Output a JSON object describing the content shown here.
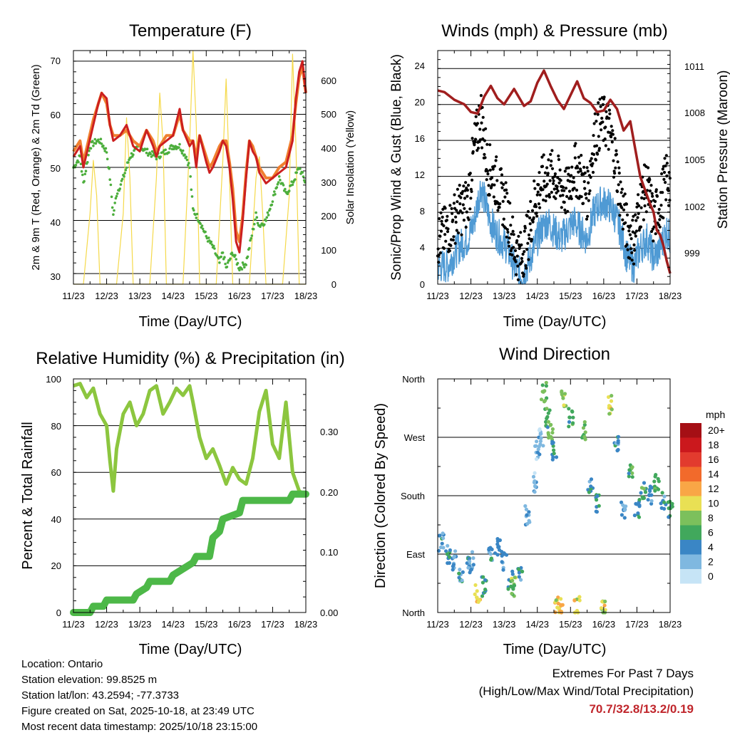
{
  "time_ticks": [
    "11/23",
    "12/23",
    "13/23",
    "14/23",
    "15/23",
    "16/23",
    "17/23",
    "18/23"
  ],
  "panels": {
    "temperature": {
      "title": "Temperature (F)",
      "xlabel": "Time (Day/UTC)",
      "ylabel_left": "2m & 9m T (Red, Orange) & 2m Td (Green)",
      "ylabel_right": "Solar Insolation (Yellow)",
      "left_ticks": [
        "70",
        "60",
        "50",
        "40",
        "30"
      ],
      "right_ticks": [
        "600",
        "500",
        "400",
        "300",
        "200",
        "100",
        "0"
      ]
    },
    "winds": {
      "title": "Winds (mph) & Pressure (mb)",
      "xlabel": "Time (Day/UTC)",
      "ylabel_left": "Sonic/Prop Wind & Gust (Blue, Black)",
      "ylabel_right": "Station Pressure (Maroon)",
      "left_ticks": [
        "24",
        "20",
        "16",
        "12",
        "8",
        "4",
        "0"
      ],
      "right_ticks": [
        "1011",
        "1008",
        "1005",
        "1002",
        "999"
      ]
    },
    "humidity": {
      "title": "Relative Humidity (%) & Precipitation (in)",
      "xlabel": "Time (Day/UTC)",
      "ylabel_left": "Percent & Total Rainfall",
      "left_ticks": [
        "100",
        "80",
        "60",
        "40",
        "20",
        "0"
      ],
      "right_ticks": [
        "0.30",
        "0.20",
        "0.10",
        "0.00"
      ]
    },
    "direction": {
      "title": "Wind Direction",
      "xlabel": "Time (Day/UTC)",
      "ylabel_left": "Direction (Colored By Speed)",
      "left_ticks": [
        "North",
        "West",
        "South",
        "East",
        "North"
      ],
      "legend_title": "mph",
      "legend_labels": [
        "20+",
        "18",
        "16",
        "14",
        "12",
        "10",
        "8",
        "6",
        "4",
        "2",
        "0"
      ],
      "legend_colors": [
        "#a50f15",
        "#cb181d",
        "#e23b2e",
        "#f26a2b",
        "#f9a646",
        "#e9e054",
        "#7cc05c",
        "#41a85c",
        "#3a86c5",
        "#7fb8e0",
        "#c6e4f6"
      ]
    }
  },
  "chart_data": [
    {
      "type": "line",
      "title": "Temperature (F)",
      "xlabel": "Time (Day/UTC)",
      "ylabel": "2m & 9m T (Red, Orange) & 2m Td (Green)",
      "y2label": "Solar Insolation (Yellow)",
      "xlim": [
        0,
        7
      ],
      "ylim": [
        28,
        72
      ],
      "y2lim": [
        0,
        660
      ],
      "series": [
        {
          "name": "2m T",
          "color": "#cc1f1f",
          "axis": "left",
          "x": [
            0,
            0.2,
            0.3,
            0.45,
            0.6,
            0.75,
            0.85,
            1.0,
            1.1,
            1.2,
            1.4,
            1.6,
            1.8,
            2.0,
            2.2,
            2.4,
            2.5,
            2.6,
            2.8,
            3.0,
            3.2,
            3.3,
            3.5,
            3.6,
            3.7,
            3.8,
            4.0,
            4.1,
            4.2,
            4.4,
            4.5,
            4.6,
            4.7,
            4.8,
            4.9,
            5.0,
            5.1,
            5.2,
            5.3,
            5.4,
            5.5,
            5.6,
            5.8,
            6.0,
            6.2,
            6.4,
            6.6,
            6.7,
            6.8,
            6.9,
            7.0
          ],
          "y": [
            52,
            54,
            50,
            54,
            58,
            62,
            64,
            63,
            58,
            55,
            56,
            58,
            54,
            53,
            57,
            54,
            52,
            54,
            55,
            56,
            61,
            57,
            54,
            55,
            50,
            56,
            51,
            49,
            50,
            53,
            55,
            54,
            50,
            44,
            36,
            34,
            40,
            48,
            55,
            53,
            52,
            49,
            47,
            48,
            49,
            50,
            55,
            63,
            68,
            70,
            64
          ]
        },
        {
          "name": "9m T",
          "color": "#f08030",
          "axis": "left",
          "x": [
            0,
            0.2,
            0.3,
            0.45,
            0.6,
            0.75,
            0.85,
            1.0,
            1.1,
            1.2,
            1.4,
            1.6,
            1.8,
            2.0,
            2.2,
            2.4,
            2.5,
            2.6,
            2.8,
            3.0,
            3.2,
            3.3,
            3.5,
            3.6,
            3.7,
            3.8,
            4.0,
            4.1,
            4.2,
            4.4,
            4.5,
            4.6,
            4.7,
            4.8,
            4.9,
            5.0,
            5.1,
            5.2,
            5.3,
            5.4,
            5.5,
            5.6,
            5.8,
            6.0,
            6.2,
            6.4,
            6.6,
            6.7,
            6.8,
            6.9,
            7.0
          ],
          "y": [
            53,
            55,
            51,
            55,
            59,
            62,
            64,
            62,
            58,
            56,
            56,
            57,
            55,
            54,
            57,
            55,
            53,
            54,
            56,
            56,
            60,
            57,
            55,
            55,
            52,
            56,
            52,
            50,
            51,
            54,
            55,
            55,
            51,
            46,
            38,
            36,
            41,
            49,
            55,
            54,
            52,
            50,
            48,
            48,
            50,
            51,
            56,
            62,
            67,
            69,
            64
          ]
        },
        {
          "name": "2m Td",
          "color": "#4cae3c",
          "axis": "left",
          "x": [
            0,
            0.2,
            0.3,
            0.5,
            0.7,
            0.8,
            1.0,
            1.1,
            1.2,
            1.3,
            1.5,
            1.7,
            2.0,
            2.2,
            2.5,
            2.8,
            3.0,
            3.2,
            3.4,
            3.5,
            3.6,
            3.8,
            4.0,
            4.2,
            4.4,
            4.5,
            4.6,
            4.8,
            5.0,
            5.2,
            5.4,
            5.5,
            5.6,
            5.8,
            6.0,
            6.2,
            6.4,
            6.6,
            6.8,
            7.0
          ],
          "y": [
            50,
            52,
            47,
            54,
            55,
            55,
            53,
            48,
            41,
            45,
            48,
            52,
            54,
            53,
            52,
            53,
            54,
            54,
            52,
            50,
            42,
            40,
            37,
            35,
            32,
            34,
            31,
            34,
            31,
            32,
            38,
            41,
            39,
            40,
            44,
            48,
            45,
            47,
            50,
            47
          ]
        },
        {
          "name": "Solar Insolation",
          "color": "#f5d94a",
          "axis": "right",
          "x": [
            0,
            0.3,
            0.5,
            0.6,
            0.7,
            0.8,
            1.0,
            1.3,
            1.5,
            1.6,
            1.7,
            1.8,
            2.0,
            2.3,
            2.5,
            2.6,
            2.7,
            2.8,
            3.0,
            3.3,
            3.5,
            3.6,
            3.7,
            3.8,
            4.0,
            4.3,
            4.5,
            4.6,
            4.7,
            4.8,
            5.0,
            5.3,
            5.5,
            5.6,
            5.7,
            5.8,
            6.0,
            6.3,
            6.5,
            6.6,
            6.7,
            6.8,
            7.0
          ],
          "y": [
            0,
            0,
            200,
            350,
            250,
            0,
            0,
            0,
            200,
            470,
            300,
            0,
            0,
            0,
            300,
            540,
            400,
            0,
            0,
            0,
            400,
            660,
            450,
            0,
            0,
            0,
            350,
            580,
            300,
            0,
            0,
            0,
            300,
            360,
            200,
            0,
            0,
            0,
            250,
            650,
            400,
            0,
            0
          ]
        }
      ]
    },
    {
      "type": "scatter",
      "title": "Winds (mph) & Pressure (mb)",
      "xlabel": "Time (Day/UTC)",
      "ylabel": "Sonic/Prop Wind & Gust (Blue, Black)",
      "y2label": "Station Pressure (Maroon)",
      "xlim": [
        0,
        7
      ],
      "ylim": [
        0,
        26
      ],
      "y2lim": [
        997.3,
        1012.5
      ],
      "series": [
        {
          "name": "Wind",
          "color": "#4f9ad4",
          "axis": "left",
          "x": [
            0,
            0.3,
            0.6,
            0.9,
            1.1,
            1.3,
            1.5,
            1.7,
            1.9,
            2.1,
            2.3,
            2.5,
            2.7,
            2.9,
            3.1,
            3.3,
            3.5,
            3.7,
            3.9,
            4.1,
            4.3,
            4.5,
            4.7,
            4.9,
            5.1,
            5.3,
            5.5,
            5.7,
            5.9,
            6.1,
            6.3,
            6.5,
            6.7,
            6.9,
            7.0
          ],
          "y": [
            2,
            2,
            4,
            5,
            7,
            11,
            8,
            6,
            5,
            4,
            2,
            1,
            2,
            4,
            6,
            7,
            6,
            5,
            6,
            7,
            6,
            5,
            8,
            9,
            9,
            8,
            6,
            3,
            2,
            4,
            5,
            3,
            4,
            6,
            5
          ]
        },
        {
          "name": "Gust",
          "color": "#000000",
          "axis": "left",
          "x": [
            0,
            0.3,
            0.6,
            0.9,
            1.1,
            1.3,
            1.5,
            1.7,
            1.9,
            2.1,
            2.3,
            2.5,
            2.7,
            2.9,
            3.1,
            3.3,
            3.5,
            3.7,
            3.9,
            4.1,
            4.3,
            4.5,
            4.7,
            4.9,
            5.1,
            5.3,
            5.5,
            5.7,
            5.9,
            6.1,
            6.3,
            6.5,
            6.7,
            6.9,
            7.0
          ],
          "y": [
            5,
            6,
            8,
            9,
            15,
            19,
            13,
            12,
            10,
            8,
            4,
            3,
            5,
            9,
            11,
            12,
            12,
            11,
            10,
            13,
            12,
            10,
            16,
            18,
            18,
            15,
            10,
            6,
            5,
            9,
            11,
            7,
            9,
            12,
            11
          ]
        },
        {
          "name": "Station Pressure",
          "color": "#a01e1e",
          "axis": "right",
          "x": [
            0,
            0.2,
            0.5,
            0.8,
            1.0,
            1.2,
            1.4,
            1.6,
            1.8,
            2.0,
            2.3,
            2.6,
            2.8,
            3.0,
            3.2,
            3.4,
            3.6,
            3.8,
            4.0,
            4.2,
            4.4,
            4.6,
            4.8,
            5.0,
            5.2,
            5.4,
            5.6,
            5.8,
            6.0,
            6.1,
            6.3,
            6.4,
            6.5,
            6.6,
            6.7,
            6.8,
            6.9,
            7.0
          ],
          "y": [
            1009.9,
            1009.8,
            1009.3,
            1009.0,
            1008.5,
            1008.4,
            1009.5,
            1010.2,
            1009.4,
            1009.0,
            1010.0,
            1008.9,
            1009.2,
            1010.4,
            1011.2,
            1010.2,
            1009.3,
            1008.7,
            1009.6,
            1010.5,
            1009.4,
            1009.1,
            1008.5,
            1008.6,
            1009.3,
            1008.7,
            1007.3,
            1007.9,
            1005.5,
            1004.3,
            1003.1,
            1002.5,
            1002.0,
            1000.8,
            1000.5,
            999.8,
            998.8,
            998.0
          ]
        }
      ]
    },
    {
      "type": "line",
      "title": "Relative Humidity (%) & Precipitation (in)",
      "xlabel": "Time (Day/UTC)",
      "ylabel": "Percent & Total Rainfall",
      "xlim": [
        0,
        7
      ],
      "ylim": [
        0,
        100
      ],
      "y2lim": [
        0,
        0.375
      ],
      "series": [
        {
          "name": "Relative Humidity",
          "color": "#8cc63f",
          "axis": "left",
          "x": [
            0,
            0.2,
            0.4,
            0.6,
            0.8,
            1.0,
            1.1,
            1.2,
            1.3,
            1.5,
            1.7,
            1.9,
            2.1,
            2.3,
            2.5,
            2.7,
            2.9,
            3.1,
            3.3,
            3.5,
            3.6,
            3.8,
            4.0,
            4.2,
            4.4,
            4.6,
            4.8,
            5.0,
            5.2,
            5.4,
            5.6,
            5.8,
            6.0,
            6.2,
            6.4,
            6.6,
            6.8,
            7.0
          ],
          "y": [
            97,
            98,
            92,
            96,
            85,
            80,
            65,
            52,
            70,
            85,
            90,
            80,
            85,
            95,
            97,
            85,
            90,
            96,
            93,
            97,
            90,
            75,
            66,
            70,
            63,
            55,
            62,
            57,
            55,
            66,
            86,
            95,
            72,
            66,
            90,
            60,
            52,
            50
          ]
        },
        {
          "name": "Total Precipitation",
          "color": "#4db848",
          "axis": "right",
          "x": [
            0,
            0.5,
            0.6,
            0.9,
            1.0,
            1.8,
            1.9,
            2.2,
            2.3,
            2.9,
            3.0,
            3.6,
            3.7,
            4.1,
            4.2,
            4.4,
            4.5,
            5.0,
            5.1,
            5.7,
            5.8,
            6.5,
            6.6,
            7.0
          ],
          "y": [
            0,
            0,
            0.01,
            0.01,
            0.02,
            0.02,
            0.03,
            0.04,
            0.05,
            0.05,
            0.06,
            0.08,
            0.09,
            0.09,
            0.12,
            0.13,
            0.15,
            0.16,
            0.18,
            0.18,
            0.18,
            0.18,
            0.19,
            0.19
          ]
        }
      ]
    },
    {
      "type": "scatter",
      "title": "Wind Direction",
      "xlabel": "Time (Day/UTC)",
      "ylabel": "Direction (Colored By Speed)",
      "xlim": [
        0,
        7
      ],
      "ylim": [
        0,
        360
      ],
      "yticks": [
        "North",
        "East",
        "South",
        "West",
        "North"
      ],
      "legend": "right",
      "series": [
        {
          "name": "Direction (colored by speed, mph)",
          "x": [
            0.1,
            0.3,
            0.5,
            0.7,
            0.9,
            1.0,
            1.2,
            1.4,
            1.6,
            1.8,
            2.0,
            2.2,
            2.3,
            2.5,
            2.7,
            2.9,
            3.0,
            3.1,
            3.2,
            3.3,
            3.4,
            3.5,
            3.6,
            3.7,
            3.8,
            4.0,
            4.2,
            4.4,
            4.6,
            4.8,
            5.0,
            5.2,
            5.4,
            5.6,
            5.8,
            6.0,
            6.2,
            6.4,
            6.6,
            6.8,
            7.0
          ],
          "y": [
            110,
            90,
            80,
            60,
            75,
            80,
            30,
            40,
            90,
            100,
            80,
            50,
            40,
            60,
            150,
            200,
            250,
            270,
            340,
            300,
            280,
            250,
            10,
            10,
            330,
            300,
            10,
            280,
            200,
            170,
            10,
            320,
            260,
            160,
            220,
            160,
            190,
            180,
            200,
            170,
            160
          ],
          "speed": [
            4,
            4,
            3,
            4,
            5,
            3,
            10,
            6,
            4,
            4,
            3,
            5,
            8,
            4,
            2,
            2,
            2,
            2,
            7,
            6,
            8,
            4,
            10,
            11,
            8,
            6,
            10,
            7,
            4,
            4,
            10,
            10,
            4,
            3,
            6,
            4,
            6,
            4,
            6,
            4,
            6
          ]
        }
      ]
    }
  ],
  "info": {
    "location": "Location: Ontario",
    "elevation": "Station elevation: 99.8525 m",
    "latlon": "Station lat/lon: 43.2594; -77.3733",
    "created": "Figure created on Sat, 2025-10-18, at 23:49 UTC",
    "recent": "Most recent data timestamp: 2025/10/18 23:15:00"
  },
  "extremes": {
    "title": "Extremes For Past 7 Days",
    "subtitle": "(High/Low/Max Wind/Total Precipitation)",
    "values": "70.7/32.8/13.2/0.19"
  }
}
